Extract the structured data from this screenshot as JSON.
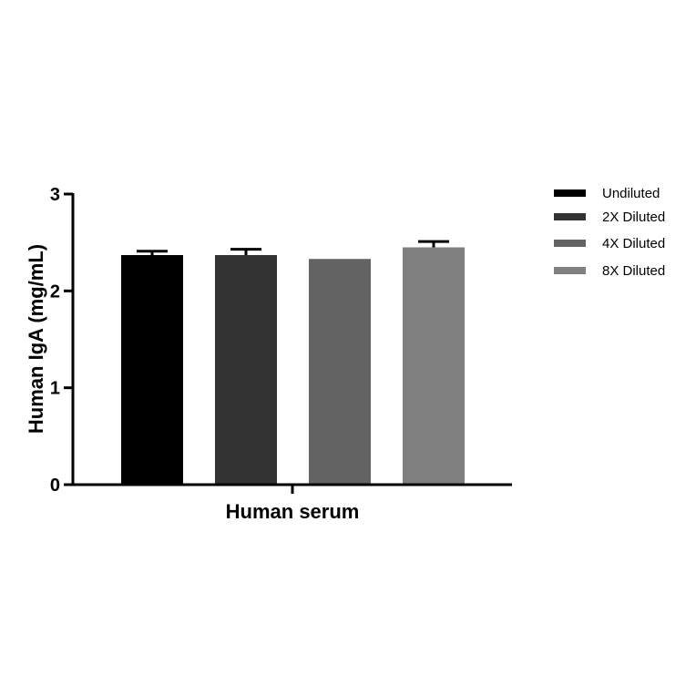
{
  "chart_data": {
    "type": "bar",
    "title": "",
    "xlabel": "Human serum",
    "ylabel": "Human IgA (mg/mL)",
    "ylim": [
      0,
      3
    ],
    "yticks": [
      "0",
      "1",
      "2",
      "3"
    ],
    "grid": false,
    "legend_placement": "right",
    "categories": [
      "Human serum"
    ],
    "series": [
      {
        "name": "Undiluted",
        "values": [
          2.37
        ],
        "error": [
          0.04
        ],
        "color": "#000000"
      },
      {
        "name": "2X Diluted",
        "values": [
          2.37
        ],
        "error": [
          0.06
        ],
        "color": "#333333"
      },
      {
        "name": "4X Diluted",
        "values": [
          2.33
        ],
        "error": [
          0
        ],
        "color": "#636363"
      },
      {
        "name": "8X Diluted",
        "values": [
          2.45
        ],
        "error": [
          0.06
        ],
        "color": "#808080"
      }
    ]
  }
}
